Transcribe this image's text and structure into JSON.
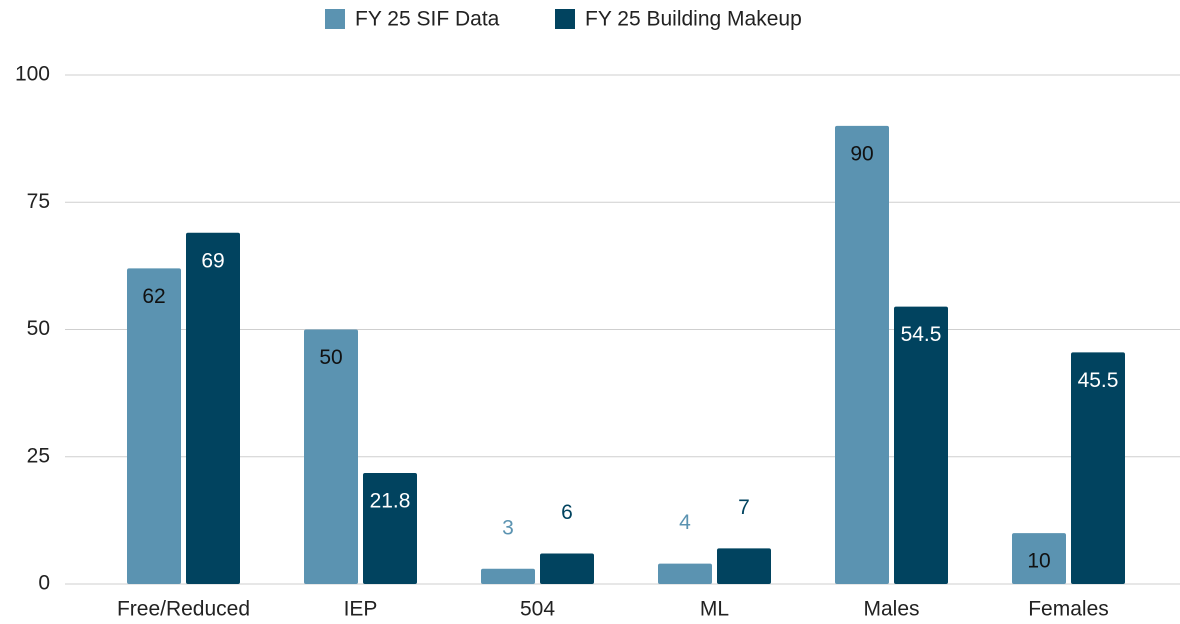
{
  "chart_data": {
    "type": "bar",
    "categories": [
      "Free/Reduced",
      "IEP",
      "504",
      "ML",
      "Males",
      "Females"
    ],
    "series": [
      {
        "name": "FY 25 SIF Data",
        "color": "#5b93b1",
        "values": [
          62,
          50,
          3,
          4,
          90,
          10
        ]
      },
      {
        "name": "FY 25 Building Makeup",
        "color": "#01435f",
        "values": [
          69,
          21.8,
          6,
          7,
          54.5,
          45.5
        ]
      }
    ],
    "ylim": [
      0,
      100
    ],
    "yticks": [
      0,
      25,
      50,
      75,
      100
    ],
    "grid": true,
    "legend": "top"
  }
}
